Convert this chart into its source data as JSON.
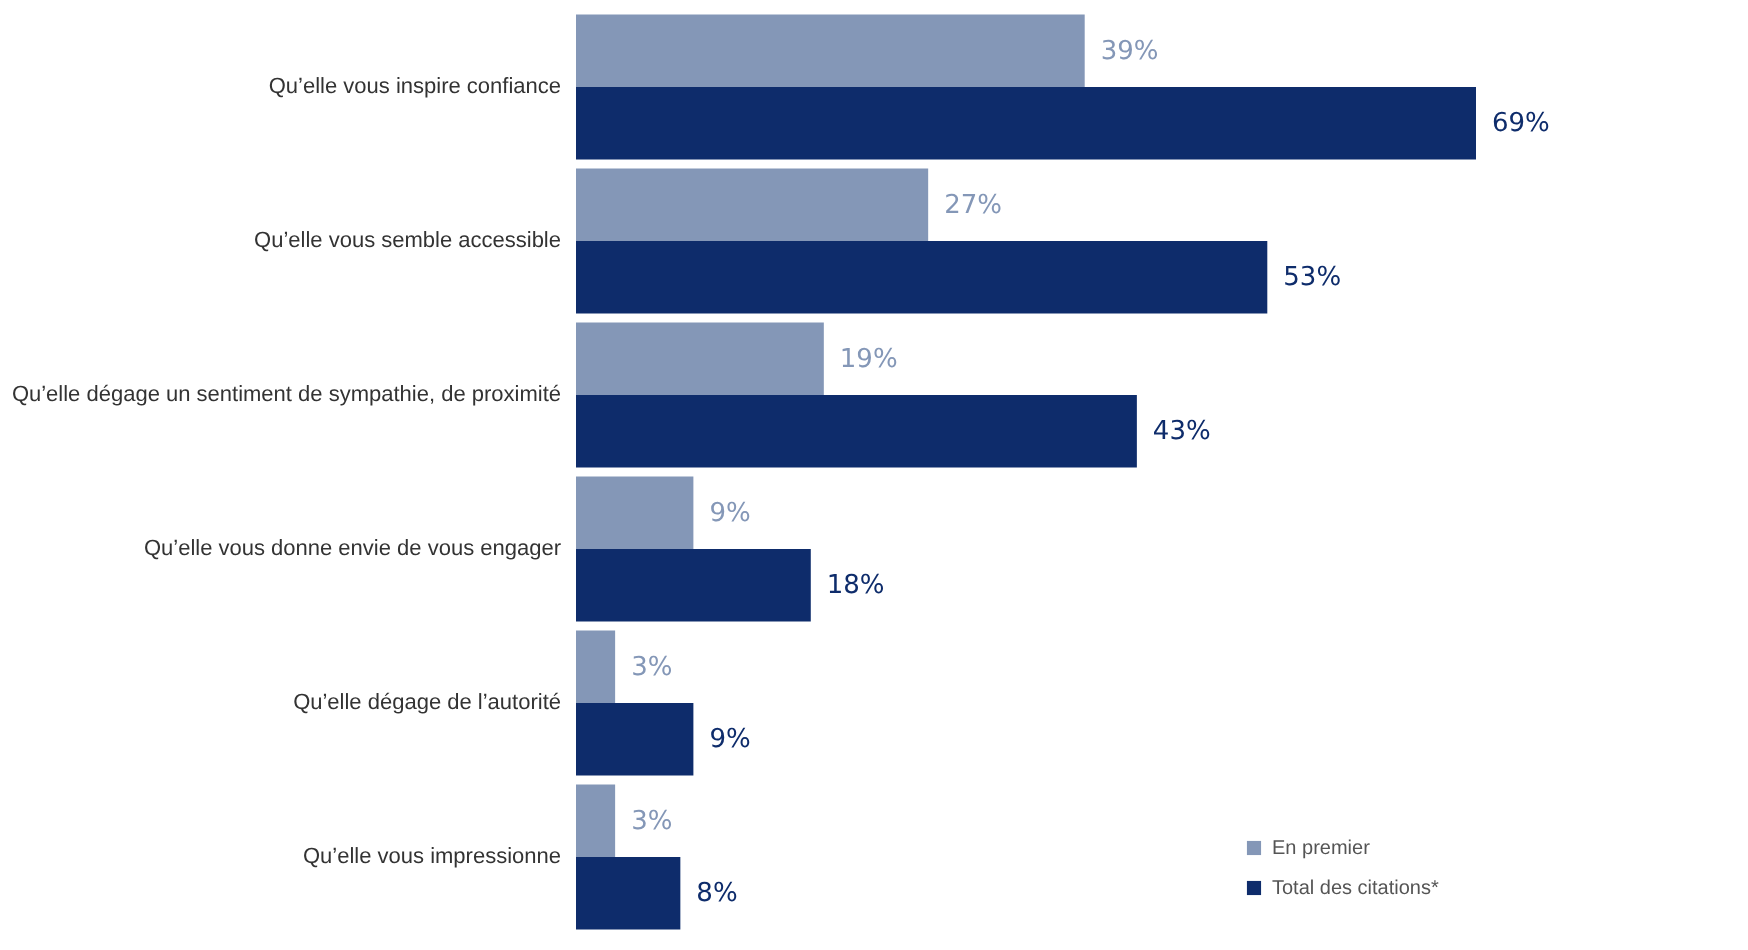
{
  "chart_data": {
    "type": "bar",
    "orientation": "horizontal",
    "categories": [
      "Qu’elle vous inspire confiance",
      "Qu’elle vous semble accessible",
      "Qu’elle dégage un sentiment de sympathie, de proximité",
      "Qu’elle vous donne envie de vous engager",
      "Qu’elle dégage de l’autorité",
      "Qu’elle vous impressionne"
    ],
    "series": [
      {
        "name": "En premier",
        "color": "#8497b7",
        "values": [
          39,
          27,
          19,
          9,
          3,
          3
        ],
        "value_labels": [
          "39%",
          "27%",
          "19%",
          "9%",
          "3%",
          "3%"
        ]
      },
      {
        "name": "Total des citations*",
        "color": "#0e2c6b",
        "values": [
          69,
          53,
          43,
          18,
          9,
          8
        ],
        "value_labels": [
          "69%",
          "53%",
          "43%",
          "18%",
          "9%",
          "8%"
        ]
      }
    ],
    "legend": "bottom right",
    "grid": false
  }
}
